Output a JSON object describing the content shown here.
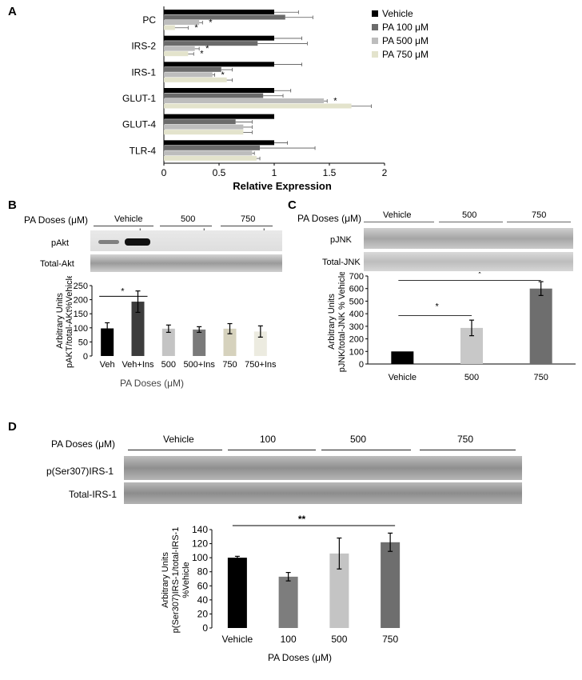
{
  "panels": {
    "A": {
      "letter": "A",
      "xlabel": "Relative Expression",
      "legend": [
        "Vehicle",
        "PA 100 μM",
        "PA 500 μM",
        "PA 750 μM"
      ]
    },
    "B": {
      "letter": "B",
      "doses_label": "PA Doses (μM)",
      "groups": [
        "Vehicle",
        "500",
        "750"
      ],
      "ins_signs": [
        "-",
        "+",
        "-",
        "+",
        "-",
        "+"
      ],
      "blots": [
        "pAkt",
        "Total-Akt"
      ],
      "ylabel_line1": "Arbitrary Units",
      "ylabel_line2": "pAKT/total-AKt%Vehicle",
      "xlabel": "PA Doses (μM)",
      "sig": "*"
    },
    "C": {
      "letter": "C",
      "doses_label": "PA Doses (μM)",
      "groups": [
        "Vehicle",
        "500",
        "750"
      ],
      "blots": [
        "pJNK",
        "Total-JNK"
      ],
      "ylabel_line1": "Arbitrary Units",
      "ylabel_line2": "pJNK/total-JNK % Vehicle",
      "sig1": "*",
      "sig2": "*"
    },
    "D": {
      "letter": "D",
      "doses_label": "PA Doses (μM)",
      "groups": [
        "Vehicle",
        "100",
        "500",
        "750"
      ],
      "blots": [
        "p(Ser307)IRS-1",
        "Total-IRS-1"
      ],
      "ylabel_line1": "Arbitrary Units",
      "ylabel_line2": "p(Ser307)IRS-1/total-IRS-1",
      "ylabel_line3": "%Vehicle",
      "xlabel": "PA Doses (μM)",
      "sig": "**"
    }
  },
  "chart_data": [
    {
      "panel": "A",
      "type": "bar",
      "orientation": "horizontal",
      "categories": [
        "PC",
        "IRS-2",
        "IRS-1",
        "GLUT-1",
        "GLUT-4",
        "TLR-4"
      ],
      "xlim": [
        0,
        2
      ],
      "xticks": [
        "0",
        "0.5",
        "1",
        "1.5",
        "2"
      ],
      "xlabel": "Relative Expression",
      "legend_position": "top-right",
      "series": [
        {
          "name": "Vehicle",
          "color": "#000000",
          "values": [
            1.0,
            1.0,
            1.0,
            1.0,
            1.0,
            1.0
          ],
          "errors": [
            0.22,
            0.25,
            0.25,
            0.15,
            0.0,
            0.12
          ]
        },
        {
          "name": "PA 100 μM",
          "color": "#6b6b6b",
          "values": [
            1.1,
            0.85,
            0.52,
            0.9,
            0.65,
            0.87
          ],
          "errors": [
            0.25,
            0.45,
            0.1,
            0.18,
            0.15,
            0.5
          ]
        },
        {
          "name": "PA 500 μM",
          "color": "#bdbdbd",
          "values": [
            0.32,
            0.28,
            0.44,
            1.45,
            0.72,
            0.8
          ],
          "errors": [
            0.03,
            0.04,
            0.02,
            0.03,
            0.08,
            0.02
          ]
        },
        {
          "name": "PA 750 μM",
          "color": "#e3e3cc",
          "values": [
            0.1,
            0.22,
            0.57,
            1.7,
            0.72,
            0.84
          ],
          "errors": [
            0.12,
            0.05,
            0.05,
            0.18,
            0.08,
            0.03
          ]
        }
      ],
      "annotations": [
        {
          "category": "PC",
          "series": "PA 500 μM",
          "text": "*"
        },
        {
          "category": "PC",
          "series": "PA 750 μM",
          "text": "*"
        },
        {
          "category": "IRS-2",
          "series": "PA 500 μM",
          "text": "*"
        },
        {
          "category": "IRS-2",
          "series": "PA 750 μM",
          "text": "*"
        },
        {
          "category": "IRS-1",
          "series": "PA 500 μM",
          "text": "*"
        },
        {
          "category": "GLUT-1",
          "series": "PA 500 μM",
          "text": "*"
        }
      ]
    },
    {
      "panel": "B",
      "type": "bar",
      "categories": [
        "Veh",
        "Veh+Ins",
        "500",
        "500+Ins",
        "750",
        "750+Ins"
      ],
      "values": [
        98,
        193,
        97,
        94,
        97,
        87
      ],
      "errors": [
        20,
        38,
        13,
        10,
        18,
        20
      ],
      "colors": [
        "#000000",
        "#3c3c3c",
        "#c4c4c4",
        "#7a7a7a",
        "#d6d2bd",
        "#ecebe0"
      ],
      "ylim": [
        0,
        250
      ],
      "yticks": [
        "0",
        "50",
        "100",
        "150",
        "200",
        "250"
      ],
      "ylabel": "Arbitrary Units pAKT/total-AKt%Vehicle",
      "xlabel": "PA Doses (μM)"
    },
    {
      "panel": "C",
      "type": "bar",
      "categories": [
        "Vehicle",
        "500",
        "750"
      ],
      "values": [
        100,
        287,
        600
      ],
      "errors": [
        0,
        62,
        55
      ],
      "colors": [
        "#000000",
        "#c8c8c8",
        "#6e6e6e"
      ],
      "ylim": [
        0,
        700
      ],
      "yticks": [
        "0",
        "100",
        "200",
        "300",
        "400",
        "500",
        "600",
        "700"
      ],
      "ylabel": "Arbitrary Units pJNK/total-JNK % Vehicle"
    },
    {
      "panel": "D",
      "type": "bar",
      "categories": [
        "Vehicle",
        "100",
        "500",
        "750"
      ],
      "values": [
        100,
        73,
        106,
        122
      ],
      "errors": [
        2,
        6,
        22,
        13
      ],
      "colors": [
        "#000000",
        "#7d7d7d",
        "#c4c4c4",
        "#6e6e6e"
      ],
      "ylim": [
        0,
        140
      ],
      "yticks": [
        "0",
        "20",
        "40",
        "60",
        "80",
        "100",
        "120",
        "140"
      ],
      "ylabel": "Arbitrary Units p(Ser307)IRS-1/total-IRS-1 %Vehicle",
      "xlabel": "PA Doses (μM)"
    }
  ]
}
